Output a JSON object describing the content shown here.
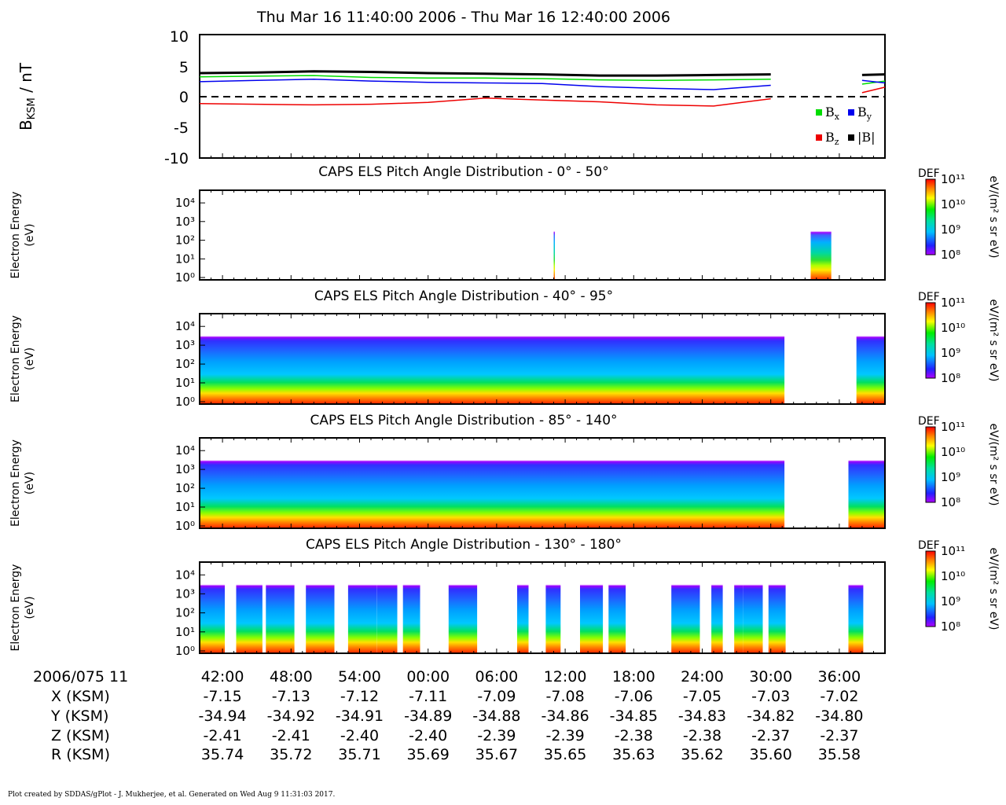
{
  "page": {
    "title": "Thu Mar 16 11:40:00 2006 - Thu Mar 16 12:40:00 2006",
    "footer": "Plot created by SDDAS/gPlot - J. Mukherjee, et al.  Generated on Wed Aug 9 11:31:03 2017."
  },
  "chart_data": [
    {
      "type": "line",
      "ylabel": "B_KSM / nT",
      "ylim": [
        -10,
        10
      ],
      "yticks": [
        "10",
        "5",
        "0",
        "-5",
        "-10"
      ],
      "reference_line": {
        "y": 0,
        "style": "dashed"
      },
      "legend": [
        "Bx",
        "By",
        "Bz",
        "|B|"
      ],
      "legend_placement": "bottom-right",
      "x_minutes": [
        0,
        5,
        10,
        15,
        20,
        25,
        30,
        35,
        40,
        45,
        50,
        55,
        58,
        60
      ],
      "series": [
        {
          "name": "Bx",
          "color": "#00dd00",
          "values": [
            3.2,
            3.3,
            3.4,
            3.1,
            3.0,
            3.0,
            2.9,
            2.7,
            2.6,
            2.7,
            2.8,
            null,
            2.0,
            2.5
          ]
        },
        {
          "name": "By",
          "color": "#0000ee",
          "values": [
            2.4,
            2.6,
            2.8,
            2.5,
            2.3,
            2.2,
            2.1,
            1.6,
            1.3,
            1.1,
            1.8,
            null,
            2.6,
            2.2
          ]
        },
        {
          "name": "Bz",
          "color": "#ee0000",
          "values": [
            -1.2,
            -1.3,
            -1.4,
            -1.3,
            -1.0,
            -0.3,
            -0.6,
            -0.9,
            -1.4,
            -1.6,
            -0.4,
            null,
            0.6,
            1.5
          ]
        },
        {
          "name": "|B|",
          "color": "#000000",
          "values": [
            3.8,
            3.9,
            4.1,
            4.0,
            3.8,
            3.7,
            3.6,
            3.4,
            3.4,
            3.5,
            3.6,
            null,
            3.5,
            3.6
          ]
        }
      ]
    },
    {
      "type": "heatmap",
      "title": "CAPS ELS Pitch Angle Distribution - 0° - 50°",
      "ylabel": "Electron Energy (eV)",
      "yticks": [
        "10⁰",
        "10¹",
        "10²",
        "10³",
        "10⁴"
      ],
      "colorbar": {
        "label": "DEF",
        "units": "eV/(m² s sr eV)",
        "ticks": [
          "10⁸",
          "10⁹",
          "10¹⁰",
          "10¹¹"
        ]
      },
      "coverage_minutes": [
        [
          31,
          31.1
        ],
        [
          53.5,
          55.3
        ]
      ]
    },
    {
      "type": "heatmap",
      "title": "CAPS ELS Pitch Angle Distribution - 40° - 95°",
      "ylabel": "Electron Energy (eV)",
      "yticks": [
        "10⁰",
        "10¹",
        "10²",
        "10³",
        "10⁴"
      ],
      "colorbar": {
        "label": "DEF",
        "units": "eV/(m² s sr eV)",
        "ticks": [
          "10⁸",
          "10⁹",
          "10¹⁰",
          "10¹¹"
        ]
      },
      "coverage_minutes": [
        [
          0,
          51.2
        ],
        [
          57.5,
          60
        ]
      ]
    },
    {
      "type": "heatmap",
      "title": "CAPS ELS Pitch Angle Distribution - 85° - 140°",
      "ylabel": "Electron Energy (eV)",
      "yticks": [
        "10⁰",
        "10¹",
        "10²",
        "10³",
        "10⁴"
      ],
      "colorbar": {
        "label": "DEF",
        "units": "eV/(m² s sr eV)",
        "ticks": [
          "10⁸",
          "10⁹",
          "10¹⁰",
          "10¹¹"
        ]
      },
      "coverage_minutes": [
        [
          0,
          51.2
        ],
        [
          56.8,
          60
        ]
      ]
    },
    {
      "type": "heatmap",
      "title": "CAPS ELS Pitch Angle Distribution - 130° - 180°",
      "ylabel": "Electron Energy (eV)",
      "yticks": [
        "10⁰",
        "10¹",
        "10²",
        "10³",
        "10⁴"
      ],
      "colorbar": {
        "label": "DEF",
        "units": "eV/(m² s sr eV)",
        "ticks": [
          "10⁸",
          "10⁹",
          "10¹⁰",
          "10¹¹"
        ]
      },
      "coverage_minutes": [
        [
          0,
          2.2
        ],
        [
          3.2,
          5.5
        ],
        [
          5.8,
          8.3
        ],
        [
          9.3,
          11.8
        ],
        [
          13,
          15.5
        ],
        [
          15.5,
          17.3
        ],
        [
          17.8,
          19.3
        ],
        [
          21.8,
          24.3
        ],
        [
          27.8,
          28.8
        ],
        [
          30.3,
          31.6
        ],
        [
          33.3,
          35.3
        ],
        [
          35.8,
          37.3
        ],
        [
          41.3,
          43.8
        ],
        [
          44.8,
          45.8
        ],
        [
          46.8,
          47.6
        ],
        [
          47.6,
          49.3
        ],
        [
          49.8,
          51.3
        ],
        [
          56.8,
          58.1
        ]
      ]
    }
  ],
  "x_axis": {
    "row_labels": [
      "2006/075 11",
      "X (KSM)",
      "Y (KSM)",
      "Z (KSM)",
      "R (KSM)"
    ],
    "ticks": [
      {
        "minute": 2,
        "label": "42:00",
        "X": "-7.15",
        "Y": "-34.94",
        "Z": "-2.41",
        "R": "35.74"
      },
      {
        "minute": 8,
        "label": "48:00",
        "X": "-7.13",
        "Y": "-34.92",
        "Z": "-2.41",
        "R": "35.72"
      },
      {
        "minute": 14,
        "label": "54:00",
        "X": "-7.12",
        "Y": "-34.91",
        "Z": "-2.40",
        "R": "35.71"
      },
      {
        "minute": 20,
        "label": "00:00",
        "X": "-7.11",
        "Y": "-34.89",
        "Z": "-2.40",
        "R": "35.69"
      },
      {
        "minute": 26,
        "label": "06:00",
        "X": "-7.09",
        "Y": "-34.88",
        "Z": "-2.39",
        "R": "35.67"
      },
      {
        "minute": 32,
        "label": "12:00",
        "X": "-7.08",
        "Y": "-34.86",
        "Z": "-2.39",
        "R": "35.65"
      },
      {
        "minute": 38,
        "label": "18:00",
        "X": "-7.06",
        "Y": "-34.85",
        "Z": "-2.38",
        "R": "35.63"
      },
      {
        "minute": 44,
        "label": "24:00",
        "X": "-7.05",
        "Y": "-34.83",
        "Z": "-2.38",
        "R": "35.62"
      },
      {
        "minute": 50,
        "label": "30:00",
        "X": "-7.03",
        "Y": "-34.82",
        "Z": "-2.37",
        "R": "35.60"
      },
      {
        "minute": 56,
        "label": "36:00",
        "X": "-7.02",
        "Y": "-34.80",
        "Z": "-2.37",
        "R": "35.58"
      }
    ]
  }
}
